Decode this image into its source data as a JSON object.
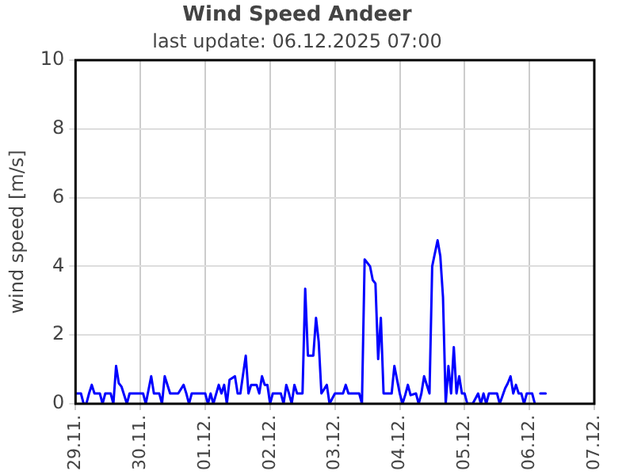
{
  "chart_data": {
    "type": "line",
    "title": "Wind Speed Andeer",
    "subtitle": "last update: 06.12.2025 07:00",
    "ylabel": "wind speed [m/s]",
    "x": [
      "2025-11-29T00:00",
      "2025-11-29T02:00",
      "2025-11-29T03:00",
      "2025-11-29T04:00",
      "2025-11-29T05:00",
      "2025-11-29T06:00",
      "2025-11-29T07:00",
      "2025-11-29T09:00",
      "2025-11-29T10:00",
      "2025-11-29T11:00",
      "2025-11-29T13:00",
      "2025-11-29T14:00",
      "2025-11-29T15:00",
      "2025-11-29T16:00",
      "2025-11-29T17:00",
      "2025-11-29T19:00",
      "2025-11-29T20:00",
      "2025-11-30T01:00",
      "2025-11-30T02:00",
      "2025-11-30T04:00",
      "2025-11-30T05:00",
      "2025-11-30T07:00",
      "2025-11-30T08:00",
      "2025-11-30T09:00",
      "2025-11-30T11:00",
      "2025-11-30T14:00",
      "2025-11-30T16:00",
      "2025-11-30T17:00",
      "2025-11-30T18:00",
      "2025-11-30T19:00",
      "2025-12-01T00:00",
      "2025-12-01T01:00",
      "2025-12-01T02:00",
      "2025-12-01T03:00",
      "2025-12-01T05:00",
      "2025-12-01T06:00",
      "2025-12-01T07:00",
      "2025-12-01T08:00",
      "2025-12-01T09:00",
      "2025-12-01T11:00",
      "2025-12-01T12:00",
      "2025-12-01T13:00",
      "2025-12-01T15:00",
      "2025-12-01T16:00",
      "2025-12-01T17:00",
      "2025-12-01T19:00",
      "2025-12-01T20:00",
      "2025-12-01T21:00",
      "2025-12-01T22:00",
      "2025-12-01T23:00",
      "2025-12-02T00:00",
      "2025-12-02T01:00",
      "2025-12-02T04:00",
      "2025-12-02T05:00",
      "2025-12-02T06:00",
      "2025-12-02T07:00",
      "2025-12-02T08:00",
      "2025-12-02T09:00",
      "2025-12-02T10:00",
      "2025-12-02T12:00",
      "2025-12-02T13:00",
      "2025-12-02T14:00",
      "2025-12-02T16:00",
      "2025-12-02T17:00",
      "2025-12-02T18:00",
      "2025-12-02T19:00",
      "2025-12-02T21:00",
      "2025-12-02T22:00",
      "2025-12-03T00:00",
      "2025-12-03T03:00",
      "2025-12-03T04:00",
      "2025-12-03T05:00",
      "2025-12-03T09:00",
      "2025-12-03T10:00",
      "2025-12-03T11:00",
      "2025-12-03T13:00",
      "2025-12-03T14:00",
      "2025-12-03T15:00",
      "2025-12-03T16:00",
      "2025-12-03T17:00",
      "2025-12-03T18:00",
      "2025-12-03T21:00",
      "2025-12-03T22:00",
      "2025-12-03T23:00",
      "2025-12-04T00:00",
      "2025-12-04T01:00",
      "2025-12-04T02:00",
      "2025-12-04T03:00",
      "2025-12-04T04:00",
      "2025-12-04T06:00",
      "2025-12-04T07:00",
      "2025-12-04T08:00",
      "2025-12-04T09:00",
      "2025-12-04T11:00",
      "2025-12-04T12:00",
      "2025-12-04T14:00",
      "2025-12-04T15:00",
      "2025-12-04T16:00",
      "2025-12-04T17:00",
      "2025-12-04T18:00",
      "2025-12-04T19:00",
      "2025-12-04T20:00",
      "2025-12-04T21:00",
      "2025-12-04T22:00",
      "2025-12-04T23:00",
      "2025-12-05T00:00",
      "2025-12-05T01:00",
      "2025-12-05T03:00",
      "2025-12-05T05:00",
      "2025-12-05T06:00",
      "2025-12-05T07:00",
      "2025-12-05T08:00",
      "2025-12-05T09:00",
      "2025-12-05T12:00",
      "2025-12-05T13:00",
      "2025-12-05T15:00",
      "2025-12-05T16:00",
      "2025-12-05T17:00",
      "2025-12-05T18:00",
      "2025-12-05T19:00",
      "2025-12-05T20:00",
      "2025-12-05T21:00",
      "2025-12-05T22:00",
      "2025-12-05T23:00",
      "2025-12-06T01:00",
      "2025-12-06T02:00"
    ],
    "series": [
      {
        "color": "#0000ff",
        "values": [
          0.3,
          0.3,
          0,
          0,
          0.3,
          0.55,
          0.3,
          0.3,
          0,
          0.3,
          0.3,
          0,
          1.1,
          0.6,
          0.5,
          0,
          0.3,
          0.3,
          0,
          0.8,
          0.3,
          0.3,
          0,
          0.8,
          0.3,
          0.3,
          0.55,
          0.3,
          0,
          0.3,
          0.3,
          0,
          0.3,
          0,
          0.55,
          0.3,
          0.55,
          0,
          0.7,
          0.8,
          0.3,
          0.3,
          1.4,
          0.3,
          0.55,
          0.55,
          0.3,
          0.8,
          0.55,
          0.55,
          0,
          0.3,
          0.3,
          0,
          0.55,
          0.3,
          0,
          0.55,
          0.3,
          0.3,
          3.35,
          1.4,
          1.4,
          2.5,
          1.8,
          0.3,
          0.55,
          0,
          0.3,
          0.3,
          0.55,
          0.3,
          0.3,
          0,
          4.2,
          4.0,
          3.6,
          3.5,
          1.3,
          2.5,
          0.3,
          0.3,
          1.1,
          0.7,
          0.3,
          0,
          0.25,
          0.55,
          0.25,
          0.3,
          0,
          0.3,
          0.8,
          0.3,
          4.0,
          4.76,
          4.3,
          3.1,
          0,
          1.1,
          0.3,
          1.65,
          0.3,
          0.8,
          0.3,
          0.3,
          0,
          0,
          0.3,
          0,
          0.3,
          0,
          0.3,
          0.3,
          0,
          0.45,
          0.6,
          0.8,
          0.3,
          0.55,
          0.3,
          0.3,
          0,
          0.3,
          0.3,
          0
        ]
      },
      {
        "color": "#0000ff",
        "x": [
          "2025-12-06T04:00",
          "2025-12-06T05:00",
          "2025-12-06T06:00"
        ],
        "values": [
          0.3,
          0.3,
          0.3
        ]
      }
    ],
    "xlim": [
      "2025-11-29",
      "2025-12-07"
    ],
    "xticks": [
      {
        "value": "2025-11-29",
        "label": "29.11."
      },
      {
        "value": "2025-11-30",
        "label": "30.11."
      },
      {
        "value": "2025-12-01",
        "label": "01.12."
      },
      {
        "value": "2025-12-02",
        "label": "02.12."
      },
      {
        "value": "2025-12-03",
        "label": "03.12."
      },
      {
        "value": "2025-12-04",
        "label": "04.12."
      },
      {
        "value": "2025-12-05",
        "label": "05.12."
      },
      {
        "value": "2025-12-06",
        "label": "06.12."
      },
      {
        "value": "2025-12-07",
        "label": "07.12."
      }
    ],
    "ylim": [
      0,
      10
    ],
    "yticks": [
      0,
      2,
      4,
      6,
      8,
      10
    ],
    "grid": true,
    "legend": false,
    "marker": "none",
    "line_style": "solid"
  }
}
